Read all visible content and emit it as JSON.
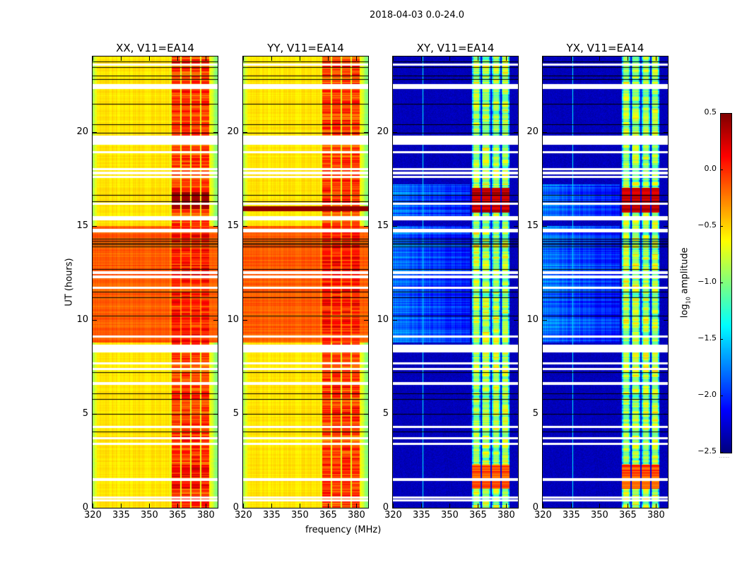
{
  "chart_data": {
    "type": "heatmap",
    "title": "2018-04-03 0.0-24.0",
    "xlabel": "frequency (MHz)",
    "ylabel": "UT (hours)",
    "xlim": [
      320,
      386.4
    ],
    "ylim": [
      0,
      24
    ],
    "xticks": [
      320,
      335,
      350,
      365,
      380
    ],
    "xtick_labels": [
      "320",
      "335",
      "350",
      "365",
      "380"
    ],
    "yticks": [
      0,
      5,
      10,
      15,
      20
    ],
    "ytick_labels": [
      "0",
      "5",
      "10",
      "15",
      "20"
    ],
    "panels": [
      {
        "title": "XX, V11=EA14",
        "kind": "auto"
      },
      {
        "title": "YY, V11=EA14",
        "kind": "auto"
      },
      {
        "title": "XY, V11=EA14",
        "kind": "cross"
      },
      {
        "title": "YX, V11=EA14",
        "kind": "cross"
      }
    ],
    "colorbar": {
      "label_prefix": "log",
      "label_sub": "10",
      "label_suffix": " amplitude",
      "colormap": "jet",
      "range": [
        -2.5,
        0.5
      ],
      "ticks": [
        0.5,
        0.0,
        -0.5,
        -1.0,
        -1.5,
        -2.0,
        -2.5
      ],
      "tick_labels": [
        "0.5",
        "0.0",
        "−0.5",
        "−1.0",
        "−1.5",
        "−2.0",
        "−2.5"
      ],
      "footer": "......"
    },
    "subbands_mhz": [
      [
        362,
        366.5
      ],
      [
        367.2,
        371.7
      ],
      [
        372.5,
        377
      ],
      [
        377.7,
        381.9
      ]
    ],
    "flagged_hours": [
      [
        19.36,
        19.78
      ],
      [
        8.33,
        8.67
      ],
      [
        15.35,
        15.5
      ],
      [
        14.72,
        14.82
      ],
      [
        23.55,
        23.62
      ],
      [
        22.45,
        22.52
      ],
      [
        22.33,
        22.38
      ],
      [
        18.9,
        18.95
      ],
      [
        18.0,
        18.05
      ],
      [
        17.8,
        17.85
      ],
      [
        17.6,
        17.65
      ],
      [
        16.18,
        16.22
      ],
      [
        12.5,
        12.55
      ],
      [
        12.28,
        12.33
      ],
      [
        11.7,
        11.75
      ],
      [
        9.1,
        9.15
      ],
      [
        7.68,
        7.73
      ],
      [
        7.38,
        7.42
      ],
      [
        6.6,
        6.65
      ],
      [
        4.3,
        4.35
      ],
      [
        3.7,
        3.75
      ],
      [
        3.4,
        3.45
      ],
      [
        1.5,
        1.55
      ],
      [
        0.55,
        0.6
      ],
      [
        0.4,
        0.45
      ]
    ],
    "black_rows_hours": [
      23.72,
      23.45,
      23.0,
      22.8,
      21.5,
      20.4,
      19.95,
      16.65,
      16.3,
      14.0,
      14.1,
      14.2,
      14.3,
      13.9,
      12.7,
      11.5,
      11.2,
      10.2,
      7.2,
      6.1,
      5.8,
      5.0,
      4.05
    ],
    "levels": {
      "auto_background": -0.55,
      "auto_daytime_9_15": -0.15,
      "auto_subbands": -0.1,
      "cross_background": -2.4,
      "cross_daytime_9_15": -1.95,
      "cross_subbands": -0.9,
      "cross_rfi_line_mhz": 336
    }
  }
}
